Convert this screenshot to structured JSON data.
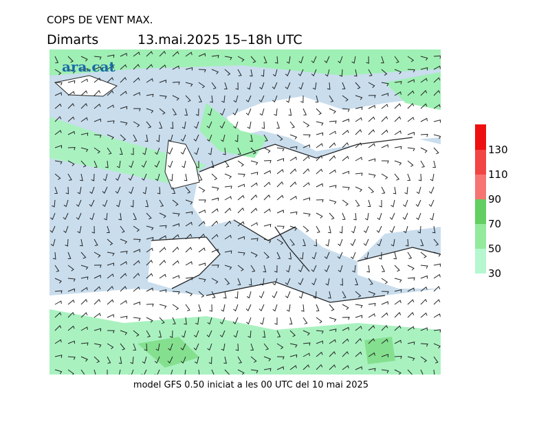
{
  "header": {
    "title": "COPS DE VENT MAX.",
    "day": "Dimarts",
    "date": "13.mai.2025 15–18h UTC"
  },
  "logo": "ara.cat",
  "footer": "model GFS 0.50 iniciat a les 00 UTC del 10 mai 2025",
  "legend": {
    "labels": [
      30,
      50,
      70,
      90,
      110,
      130
    ],
    "colors": [
      "#b6f7cf",
      "#93ea9c",
      "#63cf63",
      "#f77474",
      "#f24545",
      "#ee1010"
    ]
  }
}
